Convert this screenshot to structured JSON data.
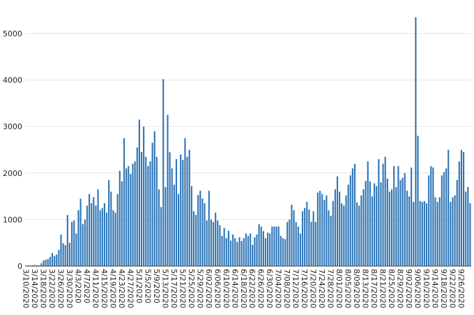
{
  "chart_data": {
    "type": "bar",
    "title": "",
    "xlabel": "",
    "ylabel": "",
    "start_date": "2020-03-10",
    "x_tick_labels": [
      "3/10/2020",
      "3/14/2020",
      "3/18/2020",
      "3/22/2020",
      "3/26/2020",
      "3/30/2020",
      "4/3/2020",
      "4/7/2020",
      "4/11/2020",
      "4/15/2020",
      "4/19/2020",
      "4/23/2020",
      "4/27/2020",
      "5/1/2020",
      "5/5/2020",
      "5/9/2020",
      "5/13/2020",
      "5/17/2020",
      "5/21/2020",
      "5/25/2020",
      "5/29/2020",
      "6/02/2020",
      "6/06/2020",
      "6/10/2020",
      "6/14/2020",
      "6/18/2020",
      "6/22/2020",
      "6/26/2020",
      "6/30/2020",
      "7/04/2020",
      "7/08/2020",
      "7/12/2020",
      "7/16/2020",
      "7/20/2020",
      "7/24/2020",
      "7/28/2020",
      "8/01/2020",
      "8/05/2020",
      "8/09/2020",
      "8/13/2020",
      "8/17/2020",
      "8/21/2020",
      "8/25/2020",
      "8/29/2020",
      "9/02/2020",
      "9/06/2020",
      "9/10/2020",
      "9/14/2020",
      "9/18/2020",
      "9/22/2020",
      "9/26/2020"
    ],
    "y_ticks": [
      0,
      1000,
      2000,
      3000,
      4000,
      5000
    ],
    "ylim": [
      0,
      5600
    ],
    "grid": true,
    "legend": false,
    "bar_color": "#2e75b6",
    "values": [
      10,
      15,
      12,
      20,
      25,
      20,
      15,
      60,
      120,
      140,
      150,
      200,
      280,
      220,
      250,
      350,
      680,
      490,
      450,
      1100,
      500,
      950,
      980,
      700,
      1200,
      1450,
      900,
      1000,
      1300,
      1550,
      1350,
      1480,
      1300,
      1650,
      1200,
      1250,
      1350,
      1150,
      1850,
      1600,
      1200,
      1150,
      1550,
      2050,
      1820,
      2750,
      2100,
      2150,
      1980,
      2200,
      2250,
      2550,
      3150,
      2450,
      3000,
      2350,
      2150,
      2250,
      2650,
      2900,
      2350,
      1650,
      1270,
      4020,
      1700,
      3250,
      2450,
      2100,
      1750,
      2300,
      1550,
      2400,
      2280,
      2750,
      2350,
      2500,
      1720,
      1180,
      1100,
      1530,
      1620,
      1450,
      1350,
      980,
      1620,
      1000,
      950,
      1150,
      980,
      880,
      650,
      820,
      600,
      760,
      550,
      680,
      600,
      520,
      620,
      540,
      600,
      700,
      650,
      700,
      460,
      620,
      680,
      900,
      850,
      750,
      600,
      720,
      700,
      850,
      850,
      850,
      850,
      650,
      600,
      580,
      950,
      1000,
      1320,
      1200,
      950,
      850,
      700,
      1180,
      1250,
      1380,
      1220,
      950,
      1180,
      950,
      1580,
      1620,
      1550,
      1420,
      1520,
      1200,
      1080,
      1400,
      1650,
      1930,
      1600,
      1350,
      1300,
      1520,
      1750,
      1950,
      2100,
      2200,
      1370,
      1300,
      1520,
      1650,
      1830,
      2250,
      1820,
      1500,
      1780,
      1720,
      2300,
      1800,
      2200,
      2350,
      1880,
      1600,
      1650,
      2150,
      1700,
      2150,
      1850,
      1900,
      2000,
      1620,
      1500,
      2120,
      1380,
      5350,
      2800,
      1400,
      1380,
      1400,
      1350,
      1950,
      2150,
      2120,
      1480,
      1380,
      1480,
      1950,
      2020,
      2100,
      2500,
      1380,
      1480,
      1520,
      1850,
      2250,
      2500,
      2450,
      1600,
      1700,
      1350
    ]
  }
}
